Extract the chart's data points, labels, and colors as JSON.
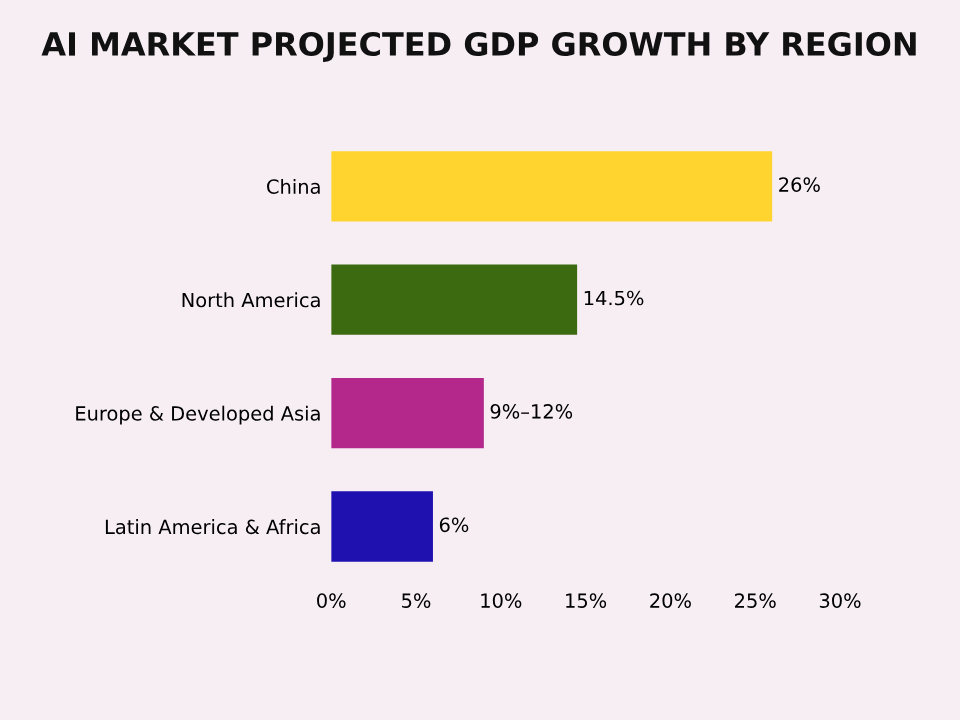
{
  "chart_data": {
    "type": "bar",
    "orientation": "horizontal",
    "title": "AI MARKET PROJECTED GDP GROWTH BY REGION",
    "categories": [
      "China",
      "North America",
      "Europe & Developed Asia",
      "Latin America & Africa"
    ],
    "values": [
      26,
      14.5,
      9,
      6
    ],
    "colors": [
      "#ffd42e",
      "#3b6a10",
      "#b3288a",
      "#1f10b0"
    ],
    "value_labels": [
      "26%",
      "14.5%",
      "9%–12%",
      "6%"
    ],
    "xlim": [
      0,
      30
    ],
    "xticks": [
      {
        "value": 0,
        "label": "0%"
      },
      {
        "value": 5,
        "label": "5%"
      },
      {
        "value": 10,
        "label": "10%"
      },
      {
        "value": 15,
        "label": "15%"
      },
      {
        "value": 20,
        "label": "20%"
      },
      {
        "value": 25,
        "label": "25%"
      },
      {
        "value": 30,
        "label": "30%"
      }
    ],
    "grid": false,
    "legend": false
  }
}
